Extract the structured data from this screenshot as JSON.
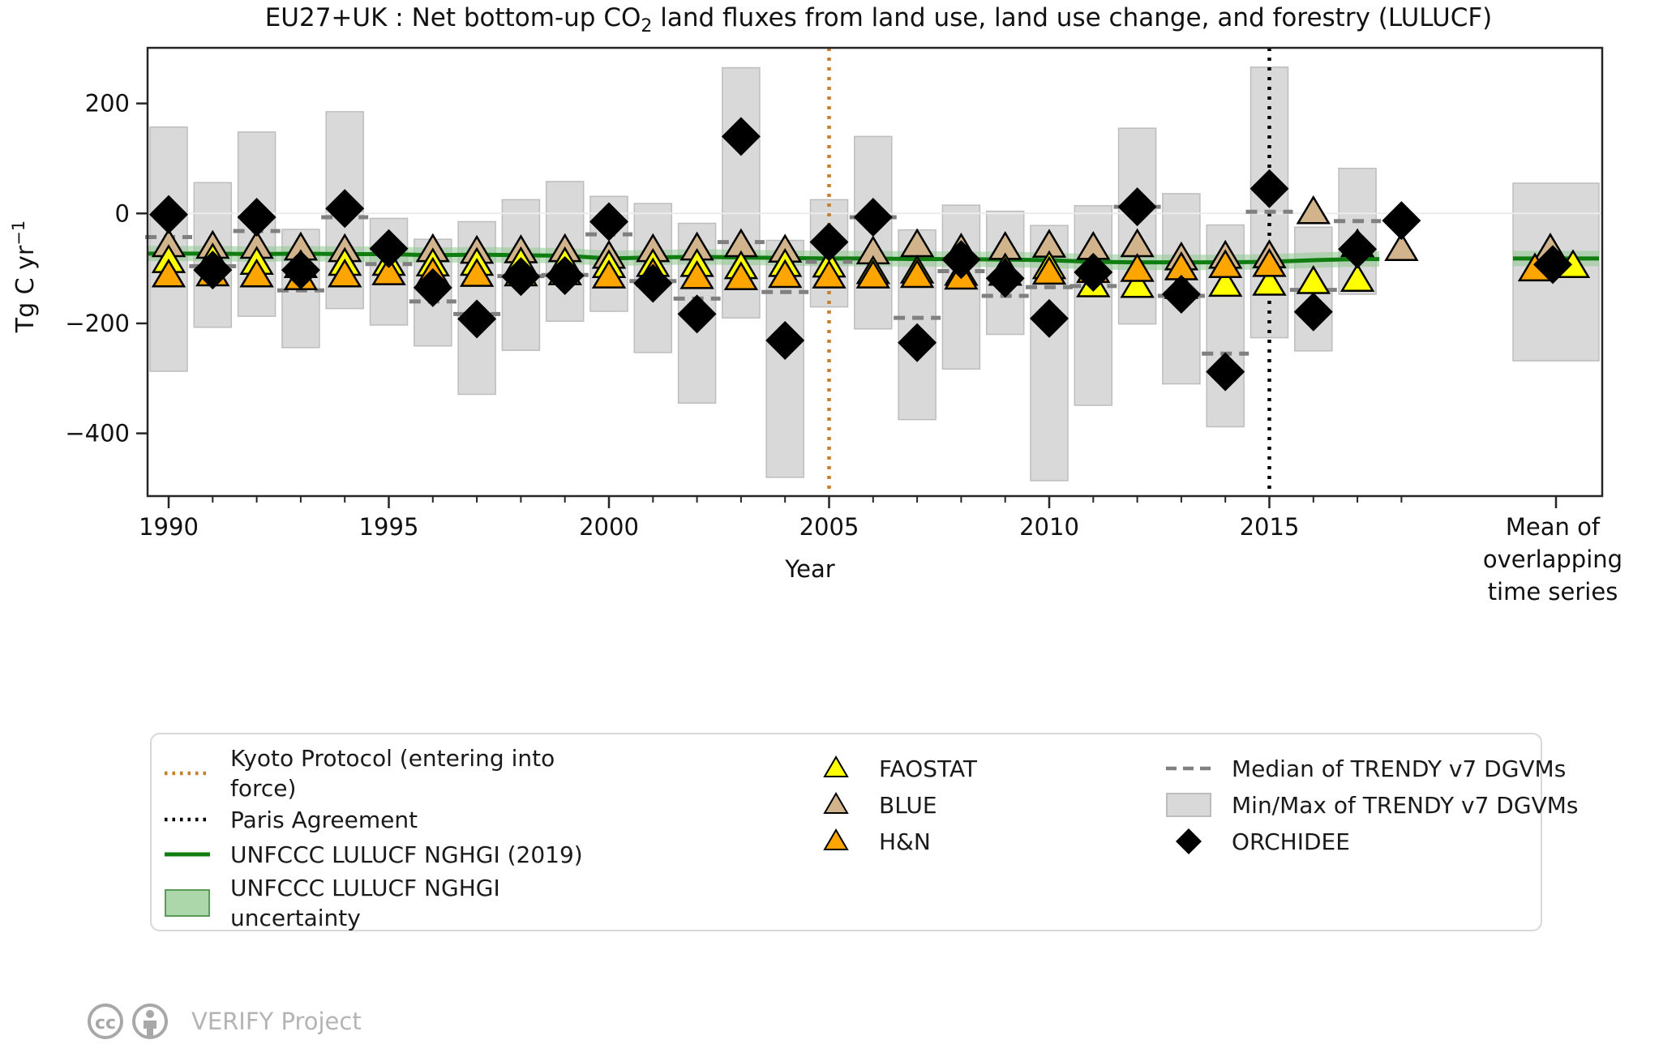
{
  "title": {
    "pre": "EU27+UK : Net bottom-up CO",
    "sub": "2",
    "post": " land fluxes from land use, land use change, and forestry (LULUCF)"
  },
  "axes": {
    "y_label_pre": "Tg C yr",
    "y_label_sup": "−1",
    "x_label": "Year",
    "y_ticks": [
      {
        "v": 200,
        "label": "200"
      },
      {
        "v": 0,
        "label": "0"
      },
      {
        "v": -200,
        "label": "−200"
      },
      {
        "v": -400,
        "label": "−400"
      }
    ],
    "x_major_ticks": [
      {
        "year": 1990,
        "label": "1990"
      },
      {
        "year": 1995,
        "label": "1995"
      },
      {
        "year": 2000,
        "label": "2000"
      },
      {
        "year": 2005,
        "label": "2005"
      },
      {
        "year": 2010,
        "label": "2010"
      },
      {
        "year": 2015,
        "label": "2015"
      }
    ],
    "mean_axis_label_lines": [
      "Mean of",
      "overlapping",
      "time series"
    ]
  },
  "colors": {
    "faostat_yellow": "#ffff00",
    "blue_tan": "#d2b48c",
    "hn_orange": "#ffa500",
    "orchidee_black": "#000000",
    "nghgi_green": "#0f7d0f",
    "nghgi_band": "#8fc98f",
    "trendy_bar": "#d9d9d9",
    "trendy_bar_edge": "#bdbdbd",
    "trendy_median": "#808080",
    "kyoto_orange": "#c87f2a",
    "paris_black": "#000000",
    "gridline": "#ececec",
    "spine": "#262626",
    "footer_gray": "#a8a8a8"
  },
  "chart_data": {
    "type": "scatter",
    "title": "EU27+UK : Net bottom-up CO2 land fluxes from land use, land use change, and forestry (LULUCF)",
    "xlabel": "Year",
    "ylabel": "Tg C yr-1",
    "ylim": [
      -514,
      301
    ],
    "grid": "y-zero-only",
    "legend_position": "bottom",
    "years": [
      1990,
      1991,
      1992,
      1993,
      1994,
      1995,
      1996,
      1997,
      1998,
      1999,
      2000,
      2001,
      2002,
      2003,
      2004,
      2005,
      2006,
      2007,
      2008,
      2009,
      2010,
      2011,
      2012,
      2013,
      2014,
      2015,
      2016,
      2017,
      2018
    ],
    "trendy_minmax": [
      [
        -287,
        157
      ],
      [
        -207,
        56
      ],
      [
        -187,
        148
      ],
      [
        -244,
        -29
      ],
      [
        -173,
        185
      ],
      [
        -203,
        -9
      ],
      [
        -241,
        -47
      ],
      [
        -329,
        -15
      ],
      [
        -249,
        25
      ],
      [
        -196,
        58
      ],
      [
        -178,
        31
      ],
      [
        -253,
        18
      ],
      [
        -345,
        -18
      ],
      [
        -190,
        265
      ],
      [
        -480,
        -49
      ],
      [
        -170,
        25
      ],
      [
        -210,
        140
      ],
      [
        -375,
        -30
      ],
      [
        -283,
        15
      ],
      [
        -220,
        4
      ],
      [
        -486,
        -22
      ],
      [
        -349,
        14
      ],
      [
        -201,
        155
      ],
      [
        -310,
        36
      ],
      [
        -388,
        -21
      ],
      [
        -226,
        266
      ],
      [
        -250,
        -25
      ],
      [
        -147,
        82
      ],
      null
    ],
    "trendy_median": [
      -43,
      -96,
      -32,
      -140,
      -7,
      -92,
      -160,
      -183,
      -114,
      -112,
      -38,
      -123,
      -155,
      -52,
      -143,
      -88,
      -7,
      -190,
      -105,
      -150,
      -134,
      -132,
      12,
      -150,
      -255,
      3,
      -139,
      -14,
      null
    ],
    "nghgi_line": [
      -73,
      -73,
      -74,
      -73,
      -74,
      -74,
      -76,
      -75,
      -76,
      -77,
      -82,
      -80,
      -79,
      -80,
      -81,
      -82,
      -82,
      -83,
      -83,
      -84,
      -85,
      -88,
      -89,
      -89,
      -89,
      -88,
      -85,
      -83,
      null
    ],
    "nghgi_uncertainty_halfwidth": 14,
    "series": [
      {
        "name": "FAOSTAT",
        "marker": "triangle",
        "color": "#ffff00",
        "values": [
          -89,
          -86,
          -92,
          -98,
          -94,
          -94,
          -95,
          -94,
          -93,
          -93,
          -98,
          -96,
          -96,
          -100,
          -96,
          -97,
          -109,
          -108,
          -112,
          -104,
          -100,
          -133,
          -134,
          -136,
          -132,
          -130,
          -127,
          -123,
          null
        ]
      },
      {
        "name": "BLUE",
        "marker": "triangle",
        "color": "#d2b48c",
        "values": [
          -60,
          -63,
          -63,
          -66,
          -69,
          null,
          -69,
          -72,
          -71,
          -69,
          -81,
          -69,
          -66,
          -60,
          -70,
          null,
          -73,
          -60,
          -68,
          -65,
          -61,
          -65,
          -60,
          -84,
          -81,
          -80,
          0,
          -60,
          -67
        ]
      },
      {
        "name": "H&N",
        "marker": "triangle",
        "color": "#ffa500",
        "values": [
          -115,
          -113,
          -115,
          -120,
          -115,
          -111,
          -112,
          -114,
          -113,
          -111,
          -117,
          -113,
          -118,
          -120,
          -116,
          -117,
          -117,
          -116,
          -119,
          -112,
          -110,
          -107,
          -105,
          -102,
          -98,
          -96,
          null,
          null,
          null
        ]
      },
      {
        "name": "ORCHIDEE",
        "marker": "diamond",
        "color": "#000000",
        "values": [
          -2,
          -103,
          -7,
          -103,
          9,
          -64,
          -135,
          -192,
          -115,
          -113,
          -15,
          -127,
          -183,
          140,
          -231,
          -52,
          -7,
          -235,
          -84,
          -118,
          -191,
          -107,
          12,
          -147,
          -288,
          45,
          -179,
          -65,
          -13
        ]
      }
    ],
    "mean_of_overlapping": {
      "minmax": [
        -268,
        55
      ],
      "nghgi": -82,
      "FAOSTAT": -98,
      "BLUE": -68,
      "H&N": -104,
      "ORCHIDEE": -93
    },
    "events": {
      "kyoto_year": 2005,
      "paris_year": 2015
    }
  },
  "legend": {
    "col1": [
      {
        "swatch": "kyoto-dotted-line",
        "lines": [
          "Kyoto Protocol (entering into",
          "force)"
        ]
      },
      {
        "swatch": "paris-dotted-line",
        "lines": [
          "Paris Agreement"
        ]
      },
      {
        "swatch": "nghgi-line",
        "lines": [
          "UNFCCC LULUCF NGHGI (2019)"
        ]
      },
      {
        "swatch": "nghgi-uncertainty-box",
        "lines": [
          "UNFCCC LULUCF NGHGI",
          "uncertainty"
        ]
      }
    ],
    "col2": [
      {
        "swatch": "faostat-triangle",
        "lines": [
          "FAOSTAT"
        ]
      },
      {
        "swatch": "blue-triangle",
        "lines": [
          "BLUE"
        ]
      },
      {
        "swatch": "hn-triangle",
        "lines": [
          "H&N"
        ]
      }
    ],
    "col3": [
      {
        "swatch": "median-dashed-line",
        "lines": [
          "Median of TRENDY v7 DGVMs"
        ]
      },
      {
        "swatch": "minmax-box",
        "lines": [
          "Min/Max of TRENDY v7 DGVMs"
        ]
      },
      {
        "swatch": "orchidee-diamond",
        "lines": [
          "ORCHIDEE"
        ]
      }
    ]
  },
  "footer": {
    "text": "VERIFY Project"
  }
}
